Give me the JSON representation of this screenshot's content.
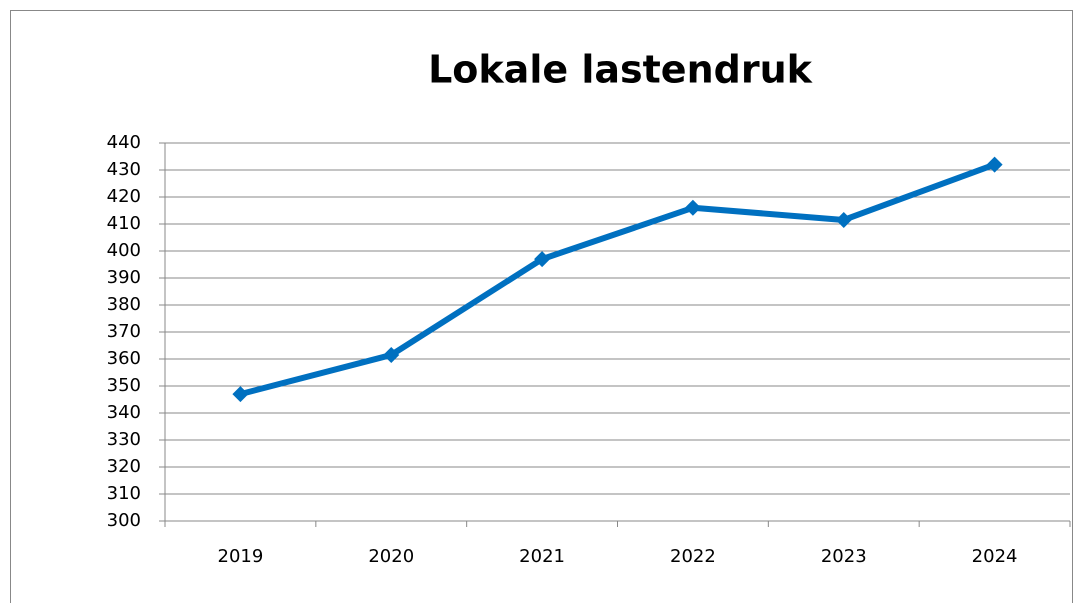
{
  "chart_data": {
    "type": "line",
    "title": "Lokale lastendruk",
    "categories": [
      "2019",
      "2020",
      "2021",
      "2022",
      "2023",
      "2024"
    ],
    "series": [
      {
        "name": "Lokale lastendruk",
        "color": "#0070c0",
        "values": [
          347,
          361.5,
          397,
          416,
          411.5,
          432
        ]
      }
    ],
    "ylim": [
      300,
      440
    ],
    "yticks": [
      300,
      310,
      320,
      330,
      340,
      350,
      360,
      370,
      380,
      390,
      400,
      410,
      420,
      430,
      440
    ],
    "grid": true,
    "legend": false
  }
}
